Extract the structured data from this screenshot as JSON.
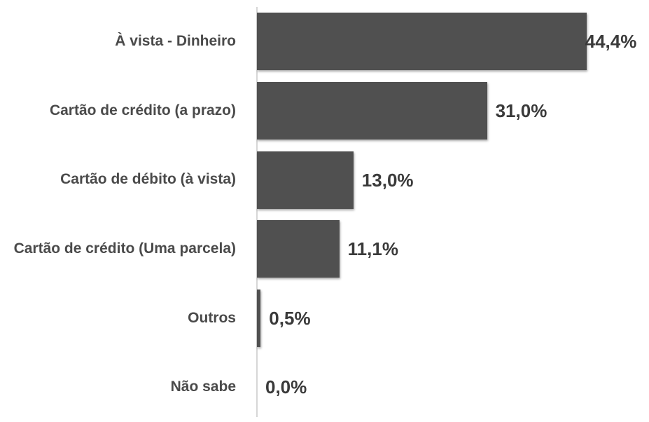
{
  "chart_data": {
    "type": "bar",
    "orientation": "horizontal",
    "categories": [
      "À vista - Dinheiro",
      "Cartão de crédito (a prazo)",
      "Cartão de débito (à vista)",
      "Cartão de crédito (Uma parcela)",
      "Outros",
      "Não sabe"
    ],
    "values": [
      44.4,
      31.0,
      13.0,
      11.1,
      0.5,
      0.0
    ],
    "value_labels": [
      "44,4%",
      "31,0%",
      "13,0%",
      "11,1%",
      "0,5%",
      "0,0%"
    ],
    "color": "#505050"
  }
}
